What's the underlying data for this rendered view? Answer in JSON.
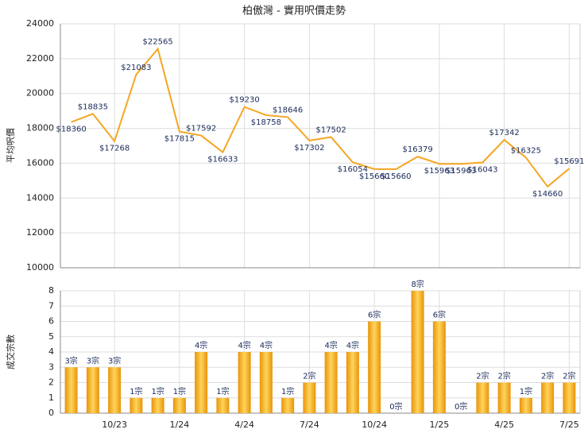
{
  "chart_data": [
    {
      "type": "line",
      "title": "柏傲灣 - 實用呎價走勢",
      "y_label": "平均呎價",
      "color": "#f5a623",
      "values": [
        18360,
        18835,
        17268,
        21083,
        22565,
        17815,
        17592,
        16633,
        19230,
        18758,
        18646,
        17302,
        17502,
        16054,
        15660,
        15660,
        16379,
        15963,
        15963,
        16043,
        17342,
        16325,
        14660,
        15691
      ],
      "value_labels": [
        "$18360",
        "$18835",
        "$17268",
        "$21083",
        "$22565",
        "$17815",
        "$17592",
        "$16633",
        "$19230",
        "$18758",
        "$18646",
        "$17302",
        "$17502",
        "$16054",
        "$15660",
        "$15660",
        "$16379",
        "$15963",
        "$15963",
        "$16043",
        "$17342",
        "$16325",
        "$14660",
        "$15691"
      ],
      "ylim": [
        10000,
        24000
      ],
      "yticks": [
        10000,
        12000,
        14000,
        16000,
        18000,
        20000,
        22000,
        24000
      ],
      "grid": true
    },
    {
      "type": "bar",
      "y_label": "成交宗數",
      "color": "#f5a623",
      "categories": [
        null,
        null,
        "10/23",
        null,
        null,
        "1/24",
        null,
        null,
        "4/24",
        null,
        null,
        "7/24",
        null,
        null,
        "10/24",
        null,
        null,
        "1/25",
        null,
        null,
        "4/25",
        null,
        null,
        "7/25"
      ],
      "values": [
        3,
        3,
        3,
        1,
        1,
        1,
        4,
        1,
        4,
        4,
        1,
        2,
        4,
        4,
        6,
        0,
        8,
        6,
        0,
        2,
        2,
        1,
        2,
        2
      ],
      "value_labels": [
        "3宗",
        "3宗",
        "3宗",
        "1宗",
        "1宗",
        "1宗",
        "4宗",
        "1宗",
        "4宗",
        "4宗",
        "1宗",
        "2宗",
        "4宗",
        "4宗",
        "6宗",
        "0宗",
        "8宗",
        "6宗",
        "0宗",
        "2宗",
        "2宗",
        "1宗",
        "2宗",
        "2宗"
      ],
      "ylim": [
        0,
        8
      ],
      "yticks": [
        0,
        1,
        2,
        3,
        4,
        5,
        6,
        7,
        8
      ],
      "grid": true
    }
  ]
}
